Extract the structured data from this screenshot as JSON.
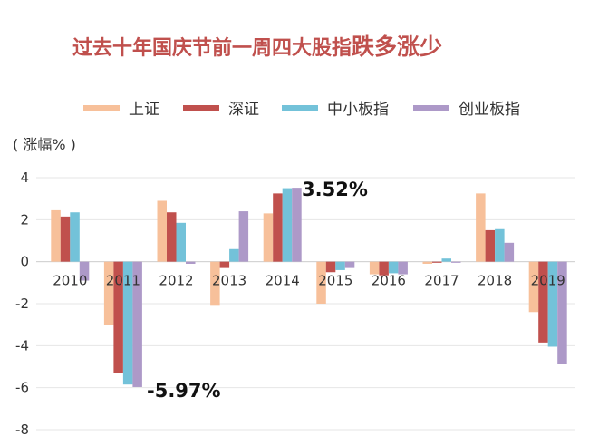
{
  "title": {
    "main": "过去十年国庆节前一周四大股指",
    "emphasis": "跌多涨少"
  },
  "chart_data": {
    "type": "bar",
    "ylabel": "( 涨幅% )",
    "ylim": [
      -8,
      4
    ],
    "yticks": [
      4,
      2,
      0,
      -2,
      -4,
      -6,
      -8
    ],
    "grid": true,
    "legend_position": "top",
    "categories": [
      "2010",
      "2011",
      "2012",
      "2013",
      "2014",
      "2015",
      "2016",
      "2017",
      "2018",
      "2019"
    ],
    "series": [
      {
        "name": "上证",
        "color": "#f7c09a",
        "values": [
          2.45,
          -3.0,
          2.9,
          -2.1,
          2.3,
          -2.0,
          -0.6,
          -0.1,
          3.25,
          -2.4
        ]
      },
      {
        "name": "深证",
        "color": "#c0504d",
        "values": [
          2.15,
          -5.3,
          2.35,
          -0.3,
          3.25,
          -0.5,
          -0.65,
          -0.05,
          1.5,
          -3.85
        ]
      },
      {
        "name": "中小板指",
        "color": "#73c2d9",
        "values": [
          2.35,
          -5.85,
          1.85,
          0.6,
          3.5,
          -0.4,
          -0.55,
          0.15,
          1.55,
          -4.05
        ]
      },
      {
        "name": "创业板指",
        "color": "#ad99c8",
        "values": [
          -0.9,
          -5.97,
          -0.1,
          2.4,
          3.52,
          -0.3,
          -0.6,
          -0.05,
          0.9,
          -4.85
        ]
      }
    ],
    "annotations": [
      {
        "text": "3.52%"
      },
      {
        "text": "-5.97%"
      }
    ]
  }
}
